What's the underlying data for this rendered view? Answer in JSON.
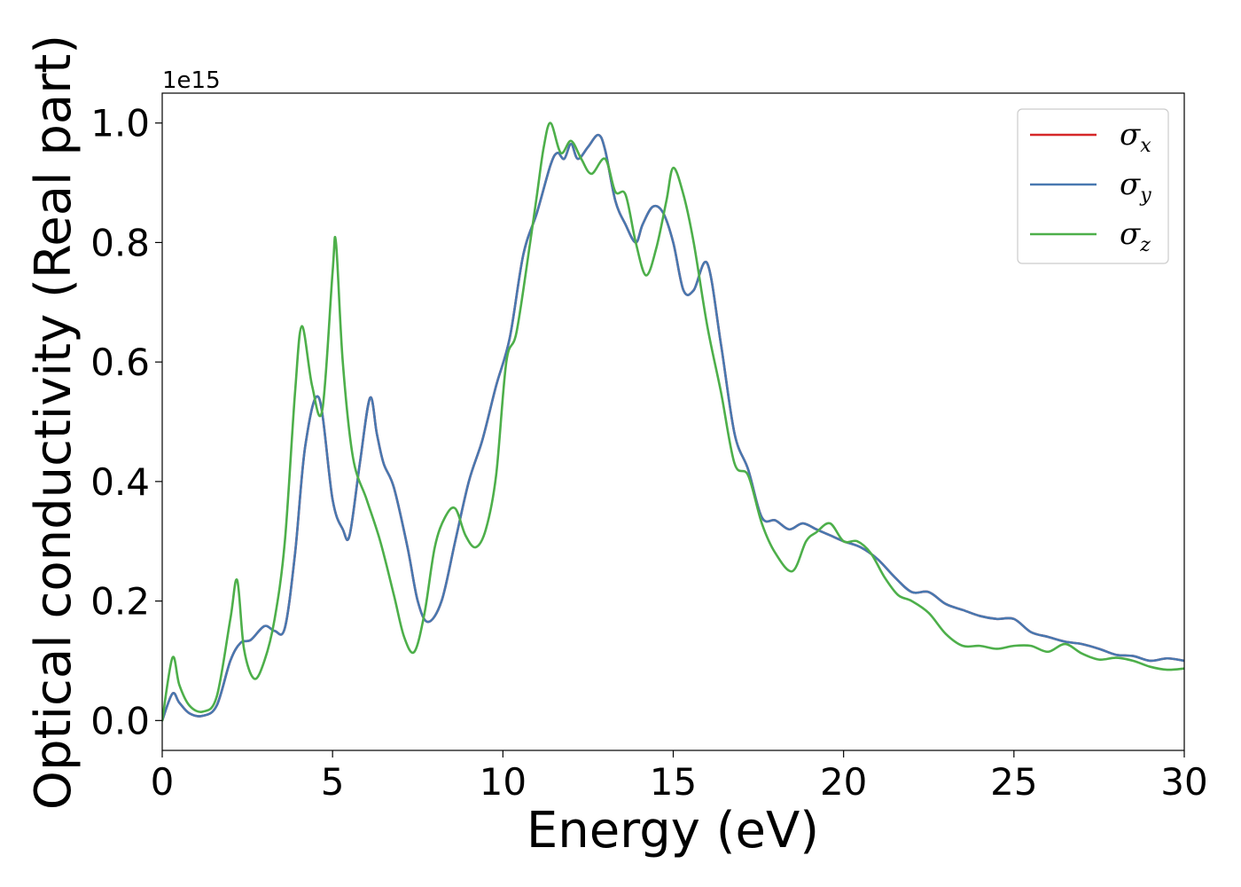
{
  "chart_data": {
    "type": "line",
    "title": "",
    "xlabel": "Energy (eV)",
    "ylabel": "Optical conductivity (Real part)",
    "y_offset_text": "1e15",
    "xlim": [
      0,
      30
    ],
    "ylim": [
      -0.05,
      1.05
    ],
    "xticks": [
      0,
      5,
      10,
      15,
      20,
      25,
      30
    ],
    "xtick_labels": [
      "0",
      "5",
      "10",
      "15",
      "20",
      "25",
      "30"
    ],
    "yticks": [
      0.0,
      0.2,
      0.4,
      0.6,
      0.8,
      1.0
    ],
    "ytick_labels": [
      "0.0",
      "0.2",
      "0.4",
      "0.6",
      "0.8",
      "1.0"
    ],
    "grid": false,
    "legend_position": "top-right",
    "series": [
      {
        "name": "σx",
        "legend_symbol": "σ",
        "legend_sub": "x",
        "color": "#d62728",
        "x": [
          0,
          0.3,
          0.5,
          0.8,
          1.2,
          1.6,
          2.0,
          2.3,
          2.6,
          3.0,
          3.3,
          3.6,
          3.9,
          4.2,
          4.6,
          5.0,
          5.3,
          5.5,
          5.8,
          6.1,
          6.3,
          6.5,
          6.8,
          7.2,
          7.5,
          7.8,
          8.2,
          8.6,
          9.0,
          9.4,
          9.8,
          10.2,
          10.6,
          11.0,
          11.4,
          11.6,
          11.8,
          12.0,
          12.2,
          12.5,
          12.8,
          13.0,
          13.3,
          13.6,
          13.9,
          14.1,
          14.4,
          14.7,
          15.0,
          15.3,
          15.6,
          16.0,
          16.4,
          16.8,
          17.2,
          17.6,
          18.0,
          18.4,
          18.8,
          19.2,
          19.6,
          20.0,
          20.5,
          21.0,
          21.5,
          22.0,
          22.5,
          23.0,
          23.5,
          24.0,
          24.5,
          25.0,
          25.5,
          26.0,
          26.5,
          27.0,
          27.5,
          28.0,
          28.5,
          29.0,
          29.5,
          30.0
        ],
        "y": [
          0.0,
          0.045,
          0.03,
          0.012,
          0.008,
          0.025,
          0.1,
          0.13,
          0.135,
          0.158,
          0.15,
          0.155,
          0.28,
          0.46,
          0.54,
          0.37,
          0.32,
          0.31,
          0.43,
          0.54,
          0.48,
          0.43,
          0.39,
          0.29,
          0.2,
          0.165,
          0.2,
          0.3,
          0.4,
          0.47,
          0.56,
          0.64,
          0.78,
          0.85,
          0.93,
          0.95,
          0.94,
          0.965,
          0.94,
          0.96,
          0.98,
          0.955,
          0.87,
          0.83,
          0.8,
          0.83,
          0.86,
          0.85,
          0.8,
          0.72,
          0.72,
          0.765,
          0.63,
          0.48,
          0.42,
          0.34,
          0.335,
          0.32,
          0.33,
          0.32,
          0.31,
          0.3,
          0.29,
          0.27,
          0.24,
          0.215,
          0.215,
          0.195,
          0.185,
          0.175,
          0.17,
          0.17,
          0.148,
          0.14,
          0.132,
          0.128,
          0.12,
          0.11,
          0.108,
          0.1,
          0.104,
          0.1
        ]
      },
      {
        "name": "σy",
        "legend_symbol": "σ",
        "legend_sub": "y",
        "color": "#4878b0",
        "x": [
          0,
          0.3,
          0.5,
          0.8,
          1.2,
          1.6,
          2.0,
          2.3,
          2.6,
          3.0,
          3.3,
          3.6,
          3.9,
          4.2,
          4.6,
          5.0,
          5.3,
          5.5,
          5.8,
          6.1,
          6.3,
          6.5,
          6.8,
          7.2,
          7.5,
          7.8,
          8.2,
          8.6,
          9.0,
          9.4,
          9.8,
          10.2,
          10.6,
          11.0,
          11.4,
          11.6,
          11.8,
          12.0,
          12.2,
          12.5,
          12.8,
          13.0,
          13.3,
          13.6,
          13.9,
          14.1,
          14.4,
          14.7,
          15.0,
          15.3,
          15.6,
          16.0,
          16.4,
          16.8,
          17.2,
          17.6,
          18.0,
          18.4,
          18.8,
          19.2,
          19.6,
          20.0,
          20.5,
          21.0,
          21.5,
          22.0,
          22.5,
          23.0,
          23.5,
          24.0,
          24.5,
          25.0,
          25.5,
          26.0,
          26.5,
          27.0,
          27.5,
          28.0,
          28.5,
          29.0,
          29.5,
          30.0
        ],
        "y": [
          0.0,
          0.045,
          0.03,
          0.012,
          0.008,
          0.025,
          0.1,
          0.13,
          0.135,
          0.158,
          0.15,
          0.155,
          0.28,
          0.46,
          0.54,
          0.37,
          0.32,
          0.31,
          0.43,
          0.54,
          0.48,
          0.43,
          0.39,
          0.29,
          0.2,
          0.165,
          0.2,
          0.3,
          0.4,
          0.47,
          0.56,
          0.64,
          0.78,
          0.85,
          0.93,
          0.95,
          0.94,
          0.965,
          0.94,
          0.96,
          0.98,
          0.955,
          0.87,
          0.83,
          0.8,
          0.83,
          0.86,
          0.85,
          0.8,
          0.72,
          0.72,
          0.765,
          0.63,
          0.48,
          0.42,
          0.34,
          0.335,
          0.32,
          0.33,
          0.32,
          0.31,
          0.3,
          0.29,
          0.27,
          0.24,
          0.215,
          0.215,
          0.195,
          0.185,
          0.175,
          0.17,
          0.17,
          0.148,
          0.14,
          0.132,
          0.128,
          0.12,
          0.11,
          0.108,
          0.1,
          0.104,
          0.1
        ]
      },
      {
        "name": "σz",
        "legend_symbol": "σ",
        "legend_sub": "z",
        "color": "#4daf4a",
        "x": [
          0,
          0.3,
          0.5,
          0.8,
          1.2,
          1.6,
          2.0,
          2.2,
          2.4,
          2.7,
          3.0,
          3.3,
          3.6,
          3.9,
          4.1,
          4.4,
          4.7,
          5.0,
          5.1,
          5.3,
          5.6,
          6.0,
          6.4,
          6.8,
          7.1,
          7.4,
          7.7,
          8.0,
          8.3,
          8.6,
          8.9,
          9.2,
          9.5,
          9.8,
          10.1,
          10.4,
          10.8,
          11.0,
          11.2,
          11.4,
          11.7,
          12.0,
          12.3,
          12.6,
          13.0,
          13.3,
          13.6,
          13.9,
          14.2,
          14.5,
          14.8,
          15.0,
          15.3,
          15.6,
          16.0,
          16.4,
          16.8,
          17.2,
          17.6,
          18.0,
          18.5,
          18.9,
          19.2,
          19.6,
          20.0,
          20.4,
          20.8,
          21.2,
          21.6,
          22.0,
          22.5,
          23.0,
          23.5,
          24.0,
          24.5,
          25.0,
          25.5,
          26.0,
          26.5,
          27.0,
          27.5,
          28.0,
          28.5,
          29.0,
          29.5,
          30.0
        ],
        "y": [
          0.0,
          0.105,
          0.06,
          0.025,
          0.015,
          0.04,
          0.17,
          0.235,
          0.12,
          0.07,
          0.1,
          0.17,
          0.3,
          0.55,
          0.66,
          0.56,
          0.52,
          0.75,
          0.8,
          0.6,
          0.44,
          0.37,
          0.3,
          0.21,
          0.14,
          0.115,
          0.18,
          0.29,
          0.34,
          0.355,
          0.31,
          0.29,
          0.32,
          0.41,
          0.6,
          0.65,
          0.8,
          0.88,
          0.96,
          1.0,
          0.95,
          0.97,
          0.94,
          0.915,
          0.94,
          0.885,
          0.88,
          0.8,
          0.745,
          0.79,
          0.87,
          0.925,
          0.88,
          0.8,
          0.66,
          0.55,
          0.43,
          0.41,
          0.33,
          0.28,
          0.25,
          0.3,
          0.315,
          0.33,
          0.3,
          0.3,
          0.28,
          0.24,
          0.21,
          0.2,
          0.18,
          0.145,
          0.125,
          0.125,
          0.12,
          0.125,
          0.125,
          0.115,
          0.128,
          0.112,
          0.102,
          0.105,
          0.1,
          0.09,
          0.085,
          0.087
        ]
      }
    ]
  }
}
